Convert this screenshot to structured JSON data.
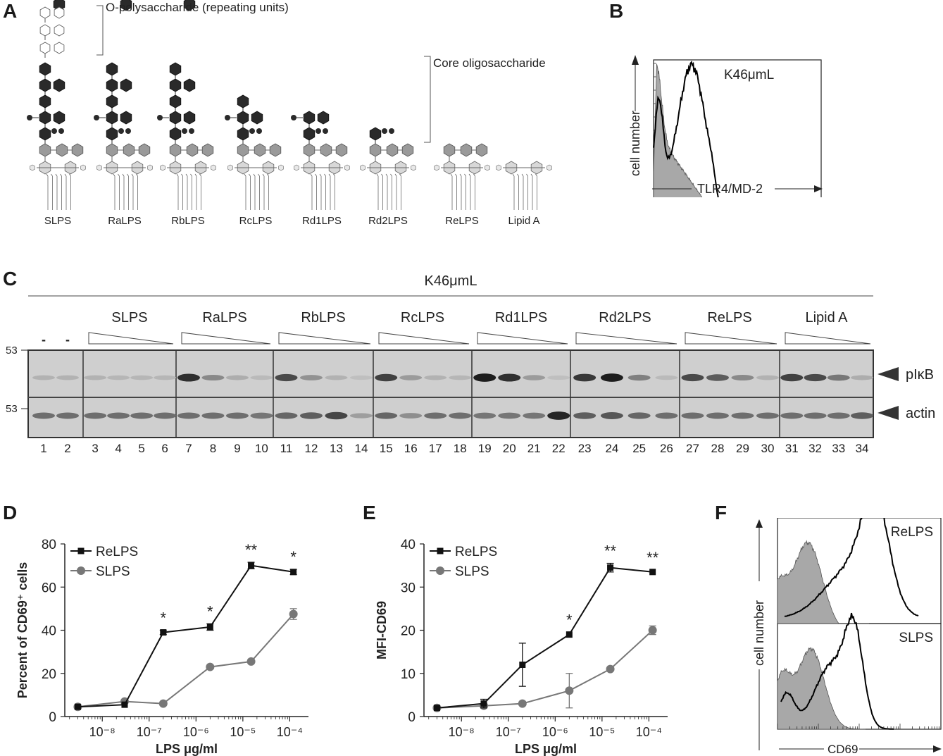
{
  "panel_letters": {
    "A": "A",
    "B": "B",
    "C": "C",
    "D": "D",
    "E": "E",
    "F": "F"
  },
  "panel_a": {
    "o_polysaccharide_label": "O-polysaccharide (repeating units)",
    "core_label": "Core oligosaccharide",
    "structures": [
      {
        "name": "SLPS",
        "core_units": 5,
        "dots": true,
        "side_branch": true,
        "o_chain": true,
        "outer_core": true
      },
      {
        "name": "RaLPS",
        "core_units": 5,
        "dots": true,
        "side_branch": true,
        "o_chain": false,
        "outer_core": true
      },
      {
        "name": "RbLPS",
        "core_units": 5,
        "dots": true,
        "side_branch": true,
        "o_chain": false,
        "outer_core": true
      },
      {
        "name": "RcLPS",
        "core_units": 3,
        "dots": true,
        "side_branch": true,
        "o_chain": false,
        "outer_core": true
      },
      {
        "name": "Rd1LPS",
        "core_units": 2,
        "dots": true,
        "side_branch": true,
        "o_chain": false,
        "outer_core": true
      },
      {
        "name": "Rd2LPS",
        "core_units": 1,
        "dots": true,
        "side_branch": false,
        "o_chain": false,
        "outer_core": true
      },
      {
        "name": "ReLPS",
        "core_units": 0,
        "dots": false,
        "side_branch": false,
        "o_chain": false,
        "outer_core": true
      },
      {
        "name": "Lipid A",
        "core_units": 0,
        "dots": false,
        "side_branch": false,
        "o_chain": false,
        "outer_core": false
      }
    ]
  },
  "panel_b": {
    "title": "K46μmL",
    "y_label": "cell number",
    "x_label": "TLR4/MD-2"
  },
  "panel_c": {
    "title": "K46μmL",
    "groups": [
      "SLPS",
      "RaLPS",
      "RbLPS",
      "RcLPS",
      "Rd1LPS",
      "Rd2LPS",
      "ReLPS",
      "Lipid A"
    ],
    "control_marks": [
      "-",
      "-"
    ],
    "marker_upper": "53",
    "marker_lower": "53",
    "band_upper": "pIκB",
    "band_lower": "actin",
    "lanes": [
      "1",
      "2",
      "3",
      "4",
      "5",
      "6",
      "7",
      "8",
      "9",
      "10",
      "11",
      "12",
      "13",
      "14",
      "15",
      "16",
      "17",
      "18",
      "19",
      "20",
      "21",
      "22",
      "23",
      "24",
      "25",
      "26",
      "27",
      "28",
      "29",
      "30",
      "31",
      "32",
      "33",
      "34"
    ],
    "pikb_intensity": [
      0.12,
      0.12,
      0.12,
      0.1,
      0.1,
      0.1,
      0.85,
      0.35,
      0.15,
      0.08,
      0.7,
      0.3,
      0.12,
      0.05,
      0.75,
      0.25,
      0.12,
      0.1,
      0.95,
      0.85,
      0.25,
      0.05,
      0.8,
      0.95,
      0.4,
      0.08,
      0.7,
      0.6,
      0.35,
      0.12,
      0.75,
      0.7,
      0.45,
      0.15
    ],
    "actin_intensity": [
      0.5,
      0.5,
      0.5,
      0.5,
      0.5,
      0.5,
      0.5,
      0.5,
      0.5,
      0.45,
      0.55,
      0.6,
      0.75,
      0.2,
      0.55,
      0.3,
      0.5,
      0.5,
      0.45,
      0.45,
      0.45,
      0.95,
      0.6,
      0.65,
      0.55,
      0.5,
      0.5,
      0.5,
      0.5,
      0.5,
      0.5,
      0.5,
      0.5,
      0.6
    ]
  },
  "chart_data": [
    {
      "panel": "D",
      "type": "line",
      "title": "",
      "xlabel": "LPS μg/ml",
      "ylabel": "Percent of CD69⁺ cells",
      "x_scale": "log",
      "ylim": [
        0,
        80
      ],
      "yticks": [
        "0",
        "20",
        "40",
        "60",
        "80"
      ],
      "xticks": [
        "10⁻⁸",
        "10⁻⁷",
        "10⁻⁶",
        "10⁻⁵",
        "10⁻⁴"
      ],
      "series": [
        {
          "name": "ReLPS",
          "color": "#111111",
          "marker": "square",
          "x": [
            3e-09,
            3e-08,
            2e-07,
            2e-06,
            1.5e-05,
            0.00012
          ],
          "y": [
            4.5,
            5.5,
            39,
            41.5,
            70,
            67
          ],
          "err": [
            0.5,
            0.5,
            1,
            1.5,
            1.5,
            1.2
          ]
        },
        {
          "name": "SLPS",
          "color": "#777777",
          "marker": "circle",
          "x": [
            3e-09,
            3e-08,
            2e-07,
            2e-06,
            1.5e-05,
            0.00012
          ],
          "y": [
            4.5,
            7,
            6,
            23,
            25.5,
            47.5
          ],
          "err": [
            0.5,
            0.5,
            0.5,
            0.8,
            0.8,
            2.5
          ]
        }
      ],
      "annotations": [
        {
          "x": 2e-07,
          "label": "*"
        },
        {
          "x": 2e-06,
          "label": "*"
        },
        {
          "x": 1.5e-05,
          "label": "**"
        },
        {
          "x": 0.00012,
          "label": "*"
        }
      ]
    },
    {
      "panel": "E",
      "type": "line",
      "title": "",
      "xlabel": "LPS μg/ml",
      "ylabel": "MFI-CD69",
      "x_scale": "log",
      "ylim": [
        0,
        40
      ],
      "yticks": [
        "0",
        "10",
        "20",
        "30",
        "40"
      ],
      "xticks": [
        "10⁻⁸",
        "10⁻⁷",
        "10⁻⁶",
        "10⁻⁵",
        "10⁻⁴"
      ],
      "series": [
        {
          "name": "ReLPS",
          "color": "#111111",
          "marker": "square",
          "x": [
            3e-09,
            3e-08,
            2e-07,
            2e-06,
            1.5e-05,
            0.00012
          ],
          "y": [
            2,
            3,
            12,
            19,
            34.5,
            33.5
          ],
          "err": [
            0.5,
            1,
            5,
            0.5,
            1,
            0.5
          ]
        },
        {
          "name": "SLPS",
          "color": "#777777",
          "marker": "circle",
          "x": [
            3e-09,
            3e-08,
            2e-07,
            2e-06,
            1.5e-05,
            0.00012
          ],
          "y": [
            2,
            2.5,
            3,
            6,
            11,
            20
          ],
          "err": [
            0.5,
            0.5,
            0.5,
            4,
            0.5,
            1
          ]
        }
      ],
      "annotations": [
        {
          "x": 2e-06,
          "label": "*"
        },
        {
          "x": 1.5e-05,
          "label": "**"
        },
        {
          "x": 0.00012,
          "label": "**"
        }
      ]
    }
  ],
  "panel_f": {
    "y_label": "cell number",
    "x_label": "CD69",
    "top_label": "ReLPS",
    "bottom_label": "SLPS"
  }
}
